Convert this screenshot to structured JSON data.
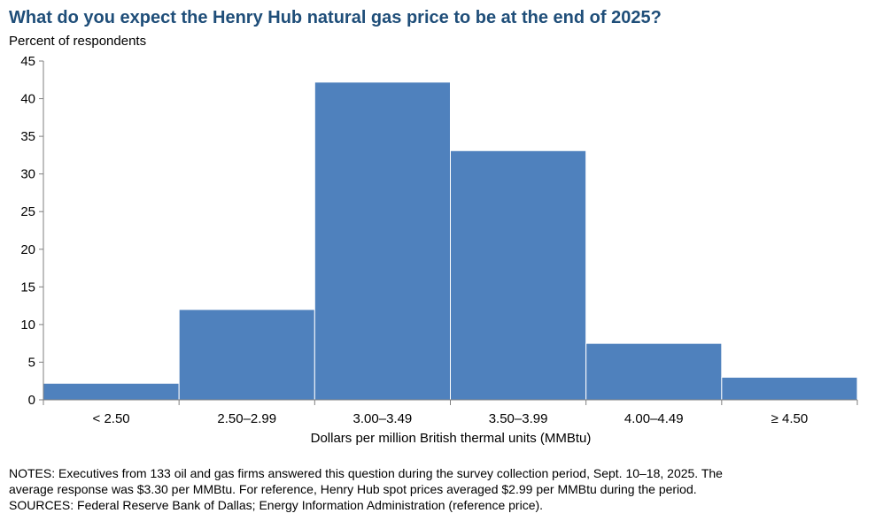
{
  "chart_data": {
    "type": "bar",
    "title": "What do you expect the Henry Hub natural gas price to be at the end of 2025?",
    "ylabel": "Percent of respondents",
    "xlabel": "Dollars per million British thermal units (MMBtu)",
    "categories": [
      "< 2.50",
      "2.50–2.99",
      "3.00–3.49",
      "3.50–3.99",
      "4.00–4.49",
      "≥ 4.50"
    ],
    "values": [
      2.2,
      12.0,
      42.2,
      33.1,
      7.5,
      3.0
    ],
    "ylim": [
      0,
      45
    ],
    "yticks": [
      "0",
      "5",
      "10",
      "15",
      "20",
      "25",
      "30",
      "35",
      "40",
      "45"
    ],
    "bar_color": "#4f81bd",
    "grid": false,
    "legend": "none"
  },
  "notes": {
    "line1": "NOTES: Executives from 133 oil and gas firms answered this question during the survey collection period, Sept. 10–18, 2025. The",
    "line2": "average response was $3.30 per MMBtu. For reference, Henry Hub spot prices averaged $2.99 per MMBtu during the period.",
    "line3": "SOURCES: Federal Reserve Bank of Dallas; Energy Information Administration (reference price)."
  }
}
